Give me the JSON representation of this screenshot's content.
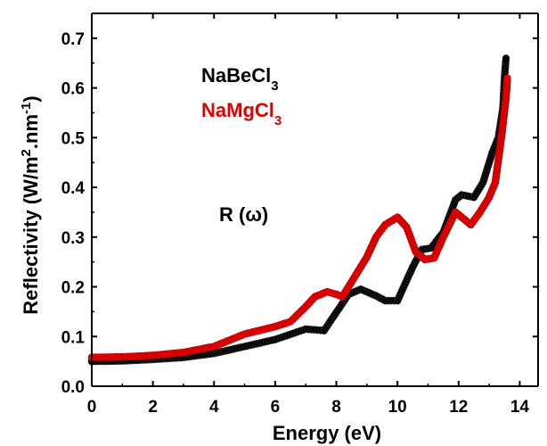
{
  "chart_data": {
    "type": "scatter",
    "title": "",
    "xlabel": "Energy (eV)",
    "ylabel": {
      "base": "Reflectivity (W/m",
      "sup1": "2",
      "mid": ".nm",
      "sup2": "-1",
      "end": ")"
    },
    "xlim": [
      0,
      14.6
    ],
    "ylim": [
      0,
      0.75
    ],
    "xticks": [
      0,
      2,
      4,
      6,
      8,
      10,
      12,
      14
    ],
    "yticks": [
      0.0,
      0.1,
      0.2,
      0.3,
      0.4,
      0.5,
      0.6,
      0.7
    ],
    "grid": false,
    "legend": {
      "placement": "top-left",
      "entries": [
        {
          "base": "NaBeCl",
          "sub": "3",
          "color": "#000000"
        },
        {
          "base": "NaMgCl",
          "sub": "3",
          "color": "#e00000"
        }
      ]
    },
    "annotation": {
      "text": "R (ω)"
    },
    "series": [
      {
        "name": "NaBeCl3",
        "color": "#000000",
        "points": [
          [
            0,
            0.05
          ],
          [
            1,
            0.051
          ],
          [
            2,
            0.054
          ],
          [
            3,
            0.058
          ],
          [
            4,
            0.066
          ],
          [
            5,
            0.08
          ],
          [
            6,
            0.094
          ],
          [
            7,
            0.115
          ],
          [
            7.6,
            0.112
          ],
          [
            8.4,
            0.185
          ],
          [
            8.8,
            0.195
          ],
          [
            9.3,
            0.182
          ],
          [
            9.6,
            0.172
          ],
          [
            10.0,
            0.172
          ],
          [
            10.5,
            0.24
          ],
          [
            10.8,
            0.275
          ],
          [
            11.1,
            0.278
          ],
          [
            11.5,
            0.31
          ],
          [
            11.9,
            0.375
          ],
          [
            12.1,
            0.385
          ],
          [
            12.5,
            0.38
          ],
          [
            12.8,
            0.41
          ],
          [
            13.1,
            0.47
          ],
          [
            13.3,
            0.5
          ],
          [
            13.45,
            0.56
          ],
          [
            13.5,
            0.62
          ],
          [
            13.55,
            0.66
          ]
        ]
      },
      {
        "name": "NaMgCl3",
        "color": "#e00000",
        "points": [
          [
            0,
            0.058
          ],
          [
            1,
            0.059
          ],
          [
            2,
            0.062
          ],
          [
            3,
            0.068
          ],
          [
            4,
            0.08
          ],
          [
            4.8,
            0.1
          ],
          [
            5,
            0.105
          ],
          [
            6,
            0.12
          ],
          [
            6.5,
            0.13
          ],
          [
            7,
            0.16
          ],
          [
            7.3,
            0.18
          ],
          [
            7.7,
            0.19
          ],
          [
            8.0,
            0.185
          ],
          [
            8.2,
            0.18
          ],
          [
            8.6,
            0.22
          ],
          [
            9.0,
            0.26
          ],
          [
            9.3,
            0.3
          ],
          [
            9.6,
            0.325
          ],
          [
            10.0,
            0.34
          ],
          [
            10.3,
            0.32
          ],
          [
            10.6,
            0.27
          ],
          [
            10.9,
            0.255
          ],
          [
            11.2,
            0.258
          ],
          [
            11.5,
            0.3
          ],
          [
            11.9,
            0.35
          ],
          [
            12.1,
            0.34
          ],
          [
            12.4,
            0.325
          ],
          [
            12.7,
            0.35
          ],
          [
            13.0,
            0.38
          ],
          [
            13.2,
            0.41
          ],
          [
            13.4,
            0.5
          ],
          [
            13.55,
            0.58
          ],
          [
            13.6,
            0.62
          ]
        ]
      }
    ]
  }
}
